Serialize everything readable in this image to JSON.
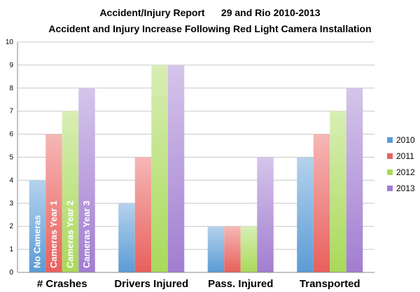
{
  "chart_data": {
    "type": "bar",
    "title": "Accident/Injury Report      29 and Rio 2010-2013",
    "subtitle": "Accident and Injury Increase Following Red Light Camera Installation",
    "categories": [
      "# Crashes",
      "Drivers Injured",
      "Pass. Injured",
      "Transported"
    ],
    "series": [
      {
        "name": "2010",
        "values": [
          4,
          3,
          2,
          5
        ],
        "color": "#5b9bd5"
      },
      {
        "name": "2011",
        "values": [
          6,
          5,
          2,
          6
        ],
        "color": "#e8605c"
      },
      {
        "name": "2012",
        "values": [
          7,
          9,
          2,
          7
        ],
        "color": "#a9d95a"
      },
      {
        "name": "2013",
        "values": [
          8,
          9,
          5,
          8
        ],
        "color": "#a27dd1"
      }
    ],
    "bar_labels": [
      "No Cameras",
      "Cameras Year 1",
      "Cameras Year 2",
      "Cameras Year 3"
    ],
    "ylim": [
      0,
      10
    ],
    "yticks": [
      0,
      1,
      2,
      3,
      4,
      5,
      6,
      7,
      8,
      9,
      10
    ],
    "grid": true,
    "legend": "right"
  }
}
